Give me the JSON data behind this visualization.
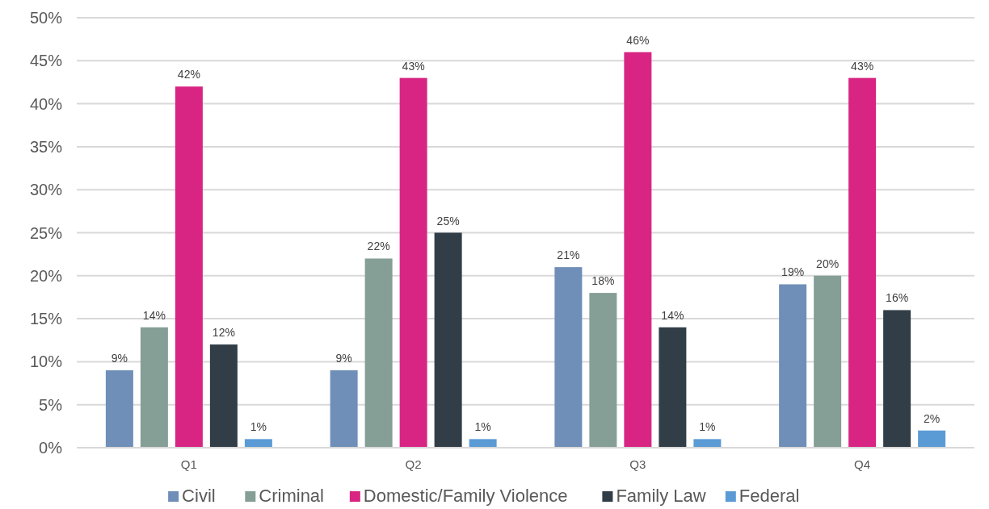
{
  "chart_data": {
    "type": "bar",
    "categories": [
      "Q1",
      "Q2",
      "Q3",
      "Q4"
    ],
    "series": [
      {
        "name": "Civil",
        "color": "#6f8fb8",
        "values": [
          9,
          9,
          21,
          19
        ],
        "value_labels": [
          "9%",
          "9%",
          "21%",
          "19%"
        ]
      },
      {
        "name": "Criminal",
        "color": "#859f96",
        "values": [
          14,
          22,
          18,
          20
        ],
        "value_labels": [
          "14%",
          "22%",
          "18%",
          "20%"
        ]
      },
      {
        "name": "Domestic/Family Violence",
        "color": "#d82583",
        "values": [
          42,
          43,
          46,
          43
        ],
        "value_labels": [
          "42%",
          "43%",
          "46%",
          "43%"
        ]
      },
      {
        "name": "Family Law",
        "color": "#313e48",
        "values": [
          12,
          25,
          14,
          16
        ],
        "value_labels": [
          "12%",
          "25%",
          "14%",
          "16%"
        ]
      },
      {
        "name": "Federal",
        "color": "#5b9bd5",
        "values": [
          1,
          1,
          1,
          2
        ],
        "value_labels": [
          "1%",
          "1%",
          "1%",
          "2%"
        ]
      }
    ],
    "ylim": [
      0,
      50
    ],
    "yticks": [
      {
        "value": 0,
        "label": "0%"
      },
      {
        "value": 5,
        "label": "5%"
      },
      {
        "value": 10,
        "label": "10%"
      },
      {
        "value": 15,
        "label": "15%"
      },
      {
        "value": 20,
        "label": "20%"
      },
      {
        "value": 25,
        "label": "25%"
      },
      {
        "value": 30,
        "label": "30%"
      },
      {
        "value": 35,
        "label": "35%"
      },
      {
        "value": 40,
        "label": "40%"
      },
      {
        "value": 45,
        "label": "45%"
      },
      {
        "value": 50,
        "label": "50%"
      }
    ],
    "grid": "y",
    "legend": "bottom"
  }
}
